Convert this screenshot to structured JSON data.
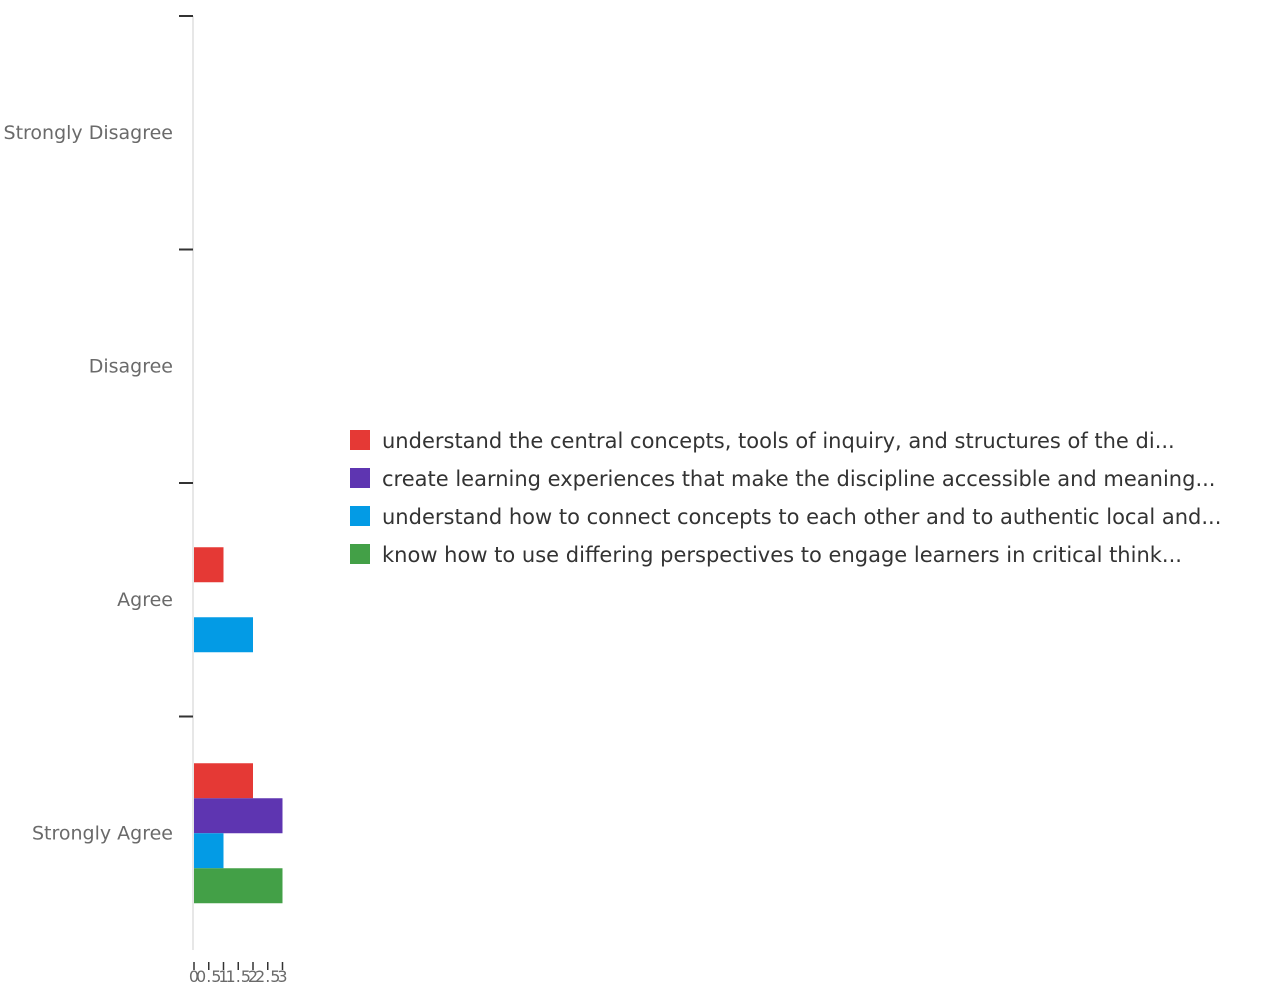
{
  "chart_data": {
    "type": "bar",
    "orientation": "horizontal",
    "categories": [
      "Strongly Disagree",
      "Disagree",
      "Agree",
      "Strongly Agree"
    ],
    "series": [
      {
        "name": "understand the central concepts, tools of inquiry, and structures of the di...",
        "color": "#e53935",
        "values": [
          0,
          0,
          1,
          2
        ]
      },
      {
        "name": "create learning experiences that make the discipline accessible and meaning...",
        "color": "#5e35b1",
        "values": [
          0,
          0,
          0,
          3
        ]
      },
      {
        "name": "understand how to connect concepts to each other and to authentic local and...",
        "color": "#039be5",
        "values": [
          0,
          0,
          2,
          1
        ]
      },
      {
        "name": "know how to use differing perspectives to engage learners in critical think...",
        "color": "#43a047",
        "values": [
          0,
          0,
          0,
          3
        ]
      }
    ],
    "x_ticks": [
      "0",
      "0.5",
      "1",
      "1.5",
      "2",
      "2.5",
      "3"
    ],
    "xlim": [
      0,
      3
    ],
    "xlabel": "",
    "ylabel": "",
    "title": "",
    "grid": false,
    "legend_position": "right"
  }
}
